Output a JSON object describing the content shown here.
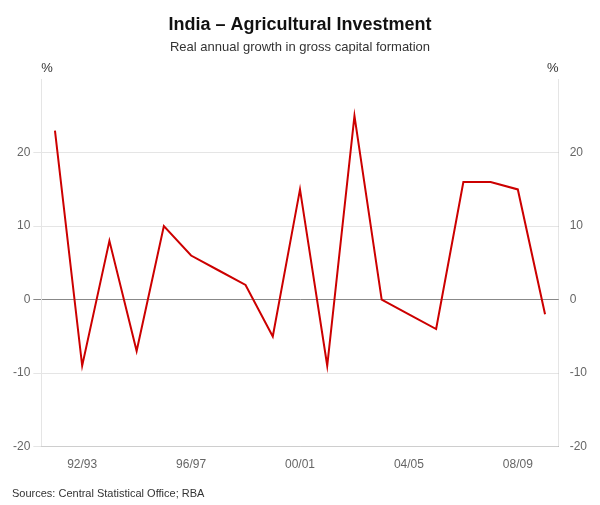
{
  "chart_data": {
    "type": "line",
    "title": "India – Agricultural Investment",
    "subtitle": "Real annual growth in gross capital formation",
    "annotations": [
      "Sources: Central Statistical Office; RBA"
    ],
    "ylabel": "%",
    "y2label": "%",
    "x": [
      1991,
      1992,
      1993,
      1994,
      1995,
      1996,
      1997,
      1998,
      1999,
      2000,
      2001,
      2002,
      2003,
      2004,
      2005,
      2006,
      2007,
      2008,
      2009
    ],
    "values": [
      23,
      -9,
      8,
      -7,
      10,
      6,
      4,
      2,
      -5,
      15,
      -9,
      25,
      0,
      -2,
      -4,
      16,
      16,
      15,
      -2
    ],
    "color": "#cc0000",
    "xlim": [
      1990.5,
      2009.5
    ],
    "xticks": [
      {
        "value": 1992,
        "label": "92/93"
      },
      {
        "value": 1996,
        "label": "96/97"
      },
      {
        "value": 2000,
        "label": "00/01"
      },
      {
        "value": 2004,
        "label": "04/05"
      },
      {
        "value": 2008,
        "label": "08/09"
      }
    ],
    "ylim": [
      -20,
      30
    ],
    "yticks": [
      -20,
      -10,
      0,
      10,
      20
    ],
    "y2lim": [
      -20,
      30
    ],
    "y2ticks": [
      -20,
      -10,
      0,
      10,
      20
    ],
    "grid": true
  }
}
